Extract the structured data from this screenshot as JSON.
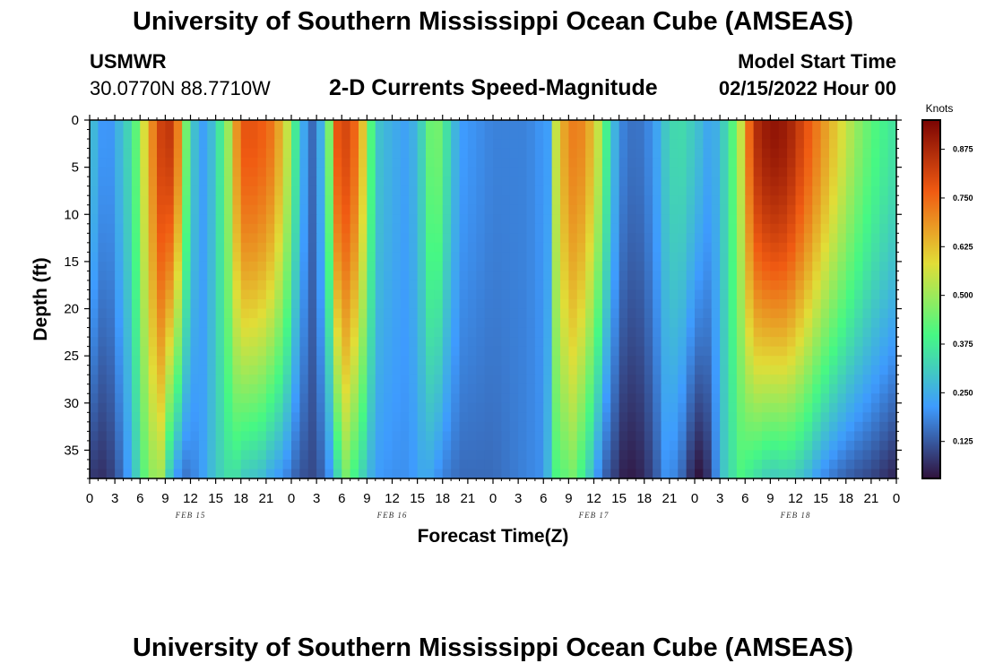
{
  "header": {
    "title": "University of Southern Mississippi Ocean Cube (AMSEAS)",
    "station": "USMWR",
    "coords": "30.0770N  88.7710W",
    "subtitle": "2-D Currents Speed-Magnitude",
    "model_start_label": "Model Start Time",
    "model_start_value": "02/15/2022 Hour 00"
  },
  "footer": {
    "title": "University of Southern Mississippi Ocean Cube (AMSEAS)"
  },
  "chart_data": {
    "type": "heatmap",
    "title": "2-D Currents Speed-Magnitude",
    "xlabel": "Forecast Time(Z)",
    "ylabel": "Depth (ft)",
    "x_range_hours": [
      0,
      96
    ],
    "y_range_ft": [
      0,
      38
    ],
    "y_inverted": true,
    "x_ticks": [
      "0",
      "3",
      "6",
      "9",
      "12",
      "15",
      "18",
      "21",
      "0",
      "3",
      "6",
      "9",
      "12",
      "15",
      "18",
      "21",
      "0",
      "3",
      "6",
      "9",
      "12",
      "15",
      "18",
      "21",
      "0",
      "3",
      "6",
      "9",
      "12",
      "15",
      "18",
      "21",
      "0"
    ],
    "y_ticks": [
      0,
      5,
      10,
      15,
      20,
      25,
      30,
      35
    ],
    "day_labels": [
      "FEB 15",
      "FEB 16",
      "FEB 17",
      "FEB 18"
    ],
    "colorbar": {
      "unit": "Knots",
      "range": [
        0.03,
        0.95
      ],
      "ticks": [
        "0.875",
        "0.750",
        "0.625",
        "0.500",
        "0.375",
        "0.250",
        "0.125"
      ],
      "tick_values": [
        0.875,
        0.75,
        0.625,
        0.5,
        0.375,
        0.25,
        0.125
      ]
    },
    "colormap_stops": [
      "#30123b",
      "#3e9bfe",
      "#46f884",
      "#e1dd37",
      "#f05b12",
      "#7a0403"
    ],
    "approx_surface_speed_knots": [
      {
        "hour": 9,
        "value": 0.8
      },
      {
        "hour": 20,
        "value": 0.75
      },
      {
        "hour": 31,
        "value": 0.8
      },
      {
        "hour": 42,
        "value": 0.4
      },
      {
        "hour": 48,
        "value": 0.18
      },
      {
        "hour": 57,
        "value": 0.7
      },
      {
        "hour": 64,
        "value": 0.15
      },
      {
        "hour": 70,
        "value": 0.3
      },
      {
        "hour": 81,
        "value": 0.9
      },
      {
        "hour": 90,
        "value": 0.55
      }
    ]
  }
}
